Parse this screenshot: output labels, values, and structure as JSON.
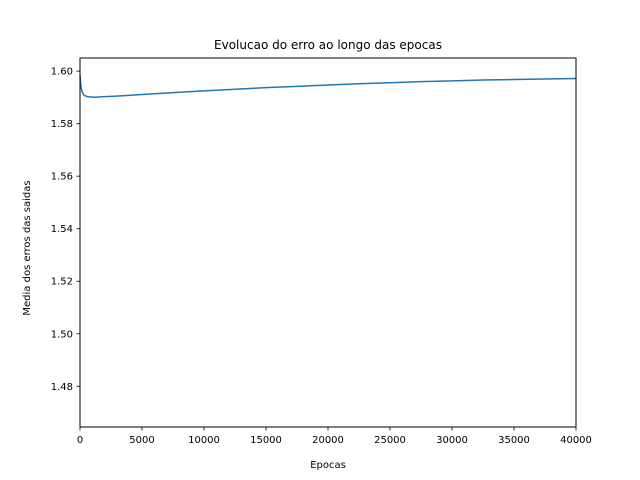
{
  "chart_data": {
    "type": "line",
    "title": "Evolucao do erro ao longo das epocas",
    "xlabel": "Epocas",
    "ylabel": "Media dos erros das saidas",
    "xlim": [
      0,
      40000
    ],
    "ylim": [
      1.4645,
      1.605
    ],
    "xticks": [
      0,
      5000,
      10000,
      15000,
      20000,
      25000,
      30000,
      35000,
      40000
    ],
    "xtick_labels": [
      "0",
      "5000",
      "10000",
      "15000",
      "20000",
      "25000",
      "30000",
      "35000",
      "40000"
    ],
    "yticks": [
      1.48,
      1.5,
      1.52,
      1.54,
      1.56,
      1.58,
      1.6
    ],
    "ytick_labels": [
      "1.48",
      "1.50",
      "1.52",
      "1.54",
      "1.56",
      "1.58",
      "1.60"
    ],
    "grid": false,
    "legend": false,
    "series": [
      {
        "color": "#1f77b4",
        "x": [
          0,
          50,
          100,
          200,
          300,
          400,
          600,
          800,
          1000,
          1300,
          1600,
          2000,
          3000,
          5000,
          7500,
          10000,
          12500,
          15000,
          17500,
          20000,
          22500,
          25000,
          27500,
          30000,
          32500,
          35000,
          37500,
          40000
        ],
        "y": [
          1.5985,
          1.5955,
          1.5935,
          1.5918,
          1.591,
          1.5906,
          1.5903,
          1.5902,
          1.5901,
          1.5901,
          1.5902,
          1.5903,
          1.5905,
          1.5911,
          1.5918,
          1.5925,
          1.5931,
          1.5937,
          1.5942,
          1.5947,
          1.5952,
          1.5956,
          1.596,
          1.5963,
          1.5966,
          1.5968,
          1.597,
          1.5972
        ]
      }
    ]
  }
}
